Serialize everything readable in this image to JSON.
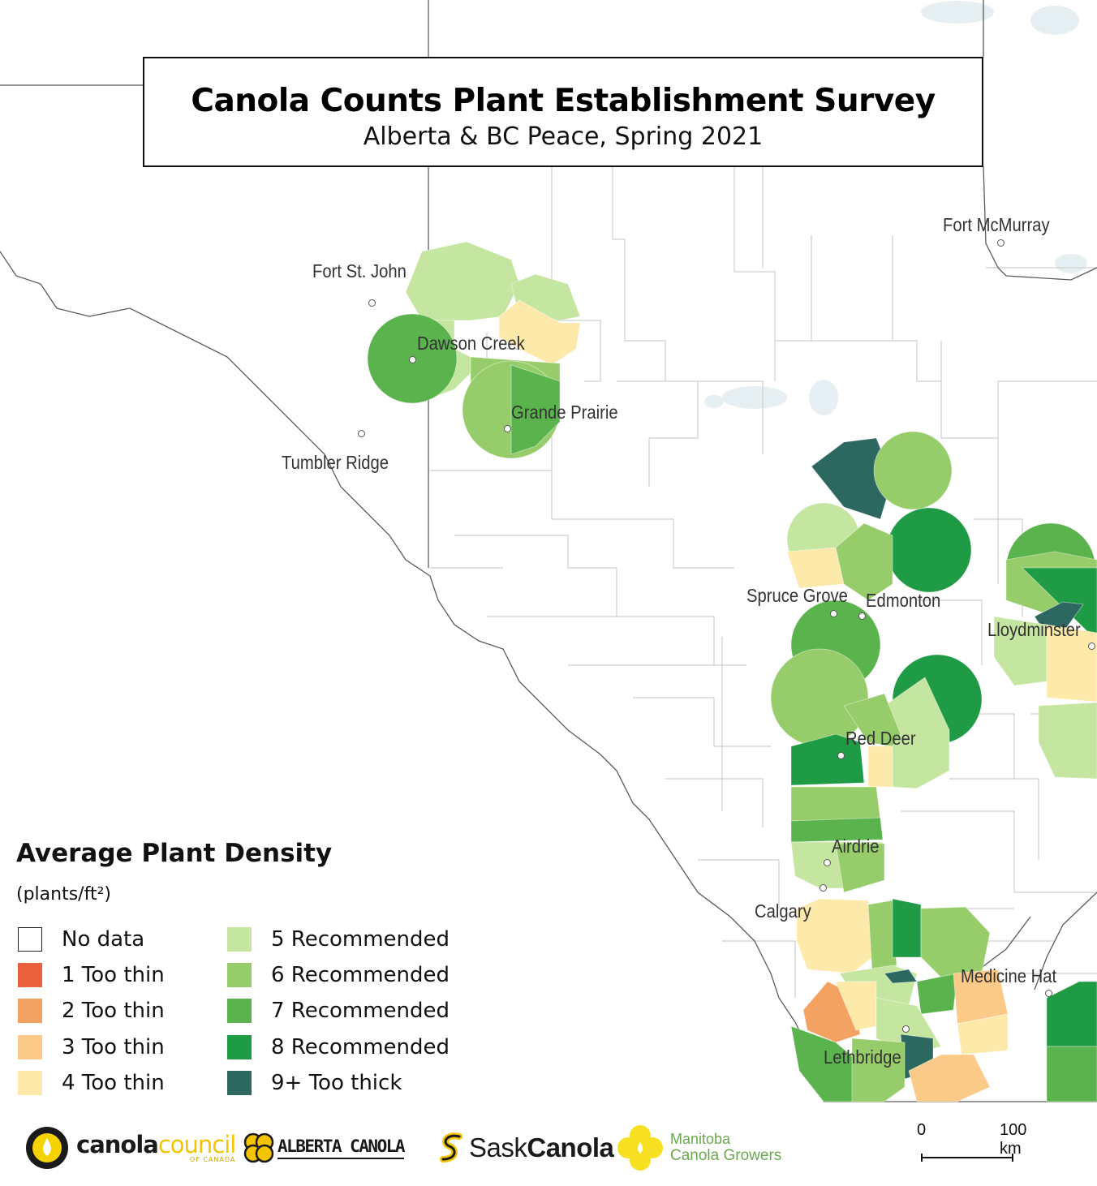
{
  "title": {
    "main": "Canola Counts Plant Establishment Survey",
    "subtitle": "Alberta & BC Peace, Spring 2021"
  },
  "cities": [
    {
      "name": "Fort McMurray"
    },
    {
      "name": "Fort St. John"
    },
    {
      "name": "Dawson Creek"
    },
    {
      "name": "Grande Prairie"
    },
    {
      "name": "Tumbler Ridge"
    },
    {
      "name": "Spruce Grove"
    },
    {
      "name": "Edmonton"
    },
    {
      "name": "Lloydminster"
    },
    {
      "name": "Red Deer"
    },
    {
      "name": "Airdrie"
    },
    {
      "name": "Calgary"
    },
    {
      "name": "Medicine Hat"
    },
    {
      "name": "Lethbridge"
    }
  ],
  "legend": {
    "title": "Average Plant Density",
    "units": "(plants/ft²)",
    "items": [
      {
        "label": "No data",
        "color": "#ffffff"
      },
      {
        "label": "1 Too thin",
        "color": "#e8603c"
      },
      {
        "label": "2 Too thin",
        "color": "#f4a261"
      },
      {
        "label": "3 Too thin",
        "color": "#fbc988"
      },
      {
        "label": "4 Too thin",
        "color": "#fde9a9"
      },
      {
        "label": "5 Recommended",
        "color": "#c5e6a0"
      },
      {
        "label": "6 Recommended",
        "color": "#96cd6a"
      },
      {
        "label": "7 Recommended",
        "color": "#5bb34d"
      },
      {
        "label": "8 Recommended",
        "color": "#1f9a45"
      },
      {
        "label": "9+ Too thick",
        "color": "#2c6860"
      }
    ]
  },
  "logos": {
    "canola_council": {
      "part1": "canola",
      "part2": "council",
      "sub": "OF CANADA"
    },
    "alberta_canola": "ALBERTA CANOLA",
    "sask_canola": {
      "part1": "Sask",
      "part2": "Canola"
    },
    "manitoba": {
      "line1": "Manitoba",
      "line2": "Canola Growers"
    }
  },
  "scale_bar": {
    "start_label": "0",
    "end_label": "100 km"
  },
  "colors": {
    "boundary": "#c8c8c8",
    "province_border": "#555555",
    "water": "#e4eef0"
  }
}
